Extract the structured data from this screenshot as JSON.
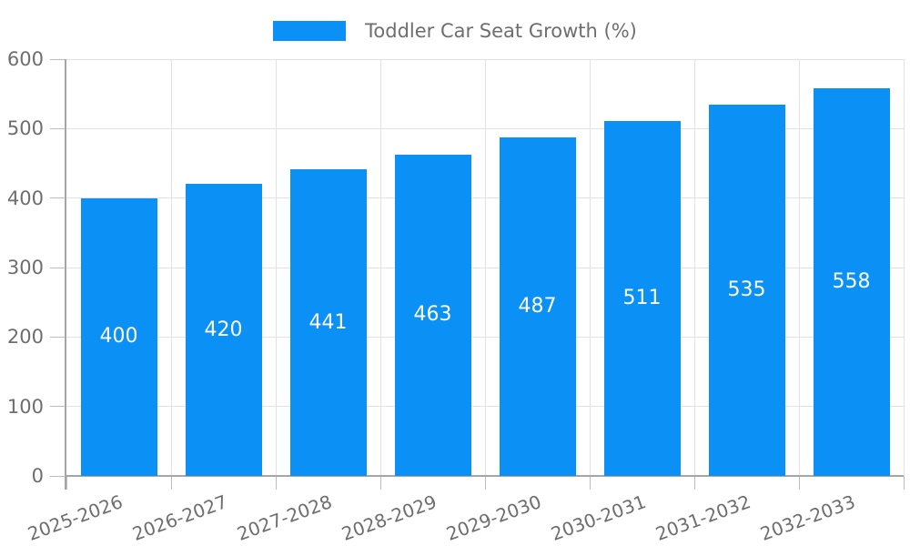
{
  "chart_data": {
    "type": "bar",
    "legend_label": "Toddler Car Seat Growth (%)",
    "legend_position": "top",
    "categories": [
      "2025-2026",
      "2026-2027",
      "2027-2028",
      "2028-2029",
      "2029-2030",
      "2030-2031",
      "2031-2032",
      "2032-2033"
    ],
    "series": [
      {
        "name": "Toddler Car Seat Growth (%)",
        "values": [
          400,
          420,
          441,
          463,
          487,
          511,
          535,
          558
        ]
      }
    ],
    "value_labels_shown": true,
    "xlabel": "",
    "ylabel": "",
    "ylim": [
      0,
      600
    ],
    "yticks": [
      0,
      100,
      200,
      300,
      400,
      500,
      600
    ],
    "grid": true,
    "x_label_rotation_deg": -20,
    "colors": {
      "bar": "#0b90f5",
      "value_label": "#ffffff",
      "grid": "#e2e2e2",
      "axis": "#a6a6a6",
      "tick": "#bdbdbd",
      "tick_label": "#6e6e6e",
      "legend_text": "#6e6e6e",
      "background": "#ffffff"
    }
  }
}
